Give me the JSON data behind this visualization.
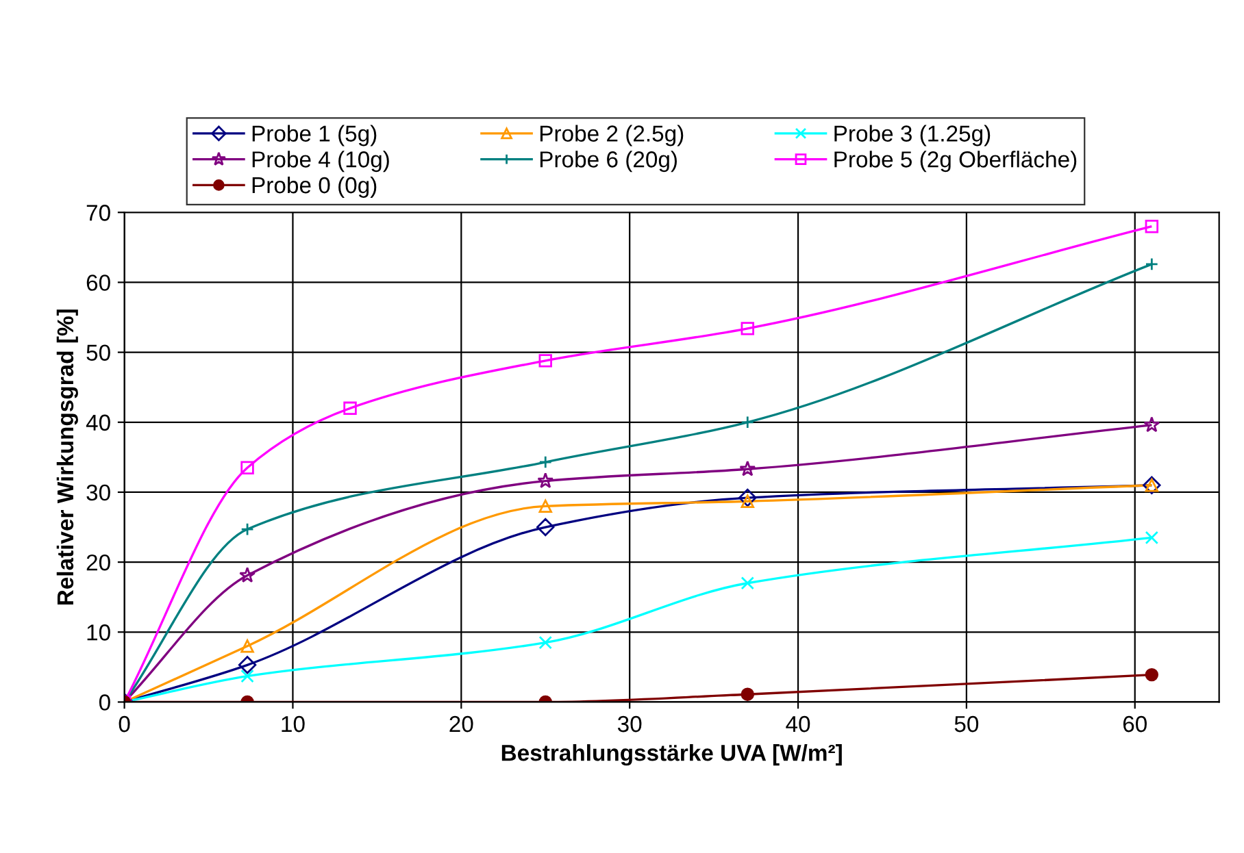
{
  "chart_data": {
    "type": "line",
    "xlabel": "Bestrahlungsstärke UVA [W/m²]",
    "ylabel": "Relativer Wirkungsgrad [%]",
    "xlim": [
      0,
      65
    ],
    "xticks": [
      0,
      10,
      20,
      30,
      40,
      50,
      60
    ],
    "ylim": [
      0,
      70
    ],
    "yticks": [
      0,
      10,
      20,
      30,
      40,
      50,
      60,
      70
    ],
    "grid": true,
    "legend": "top",
    "line_style": "solid",
    "series": [
      {
        "name": "Probe 1 (5g)",
        "color": "#000080",
        "marker": "diamond",
        "x": [
          0,
          7.3,
          25,
          37,
          61
        ],
        "values": [
          0,
          5.3,
          25,
          29.2,
          31
        ]
      },
      {
        "name": "Probe 2 (2.5g)",
        "color": "#ff9900",
        "marker": "triangle",
        "x": [
          0,
          7.3,
          25,
          37,
          61
        ],
        "values": [
          0,
          8,
          28,
          28.7,
          31
        ]
      },
      {
        "name": "Probe 3 (1.25g)",
        "color": "#00ffff",
        "marker": "cross",
        "x": [
          0,
          7.3,
          25,
          37,
          61
        ],
        "values": [
          0,
          3.7,
          8.5,
          17,
          23.5
        ]
      },
      {
        "name": "Probe 4 (10g)",
        "color": "#800080",
        "marker": "star",
        "x": [
          0,
          7.3,
          25,
          37,
          61
        ],
        "values": [
          0,
          18.1,
          31.6,
          33.3,
          39.6
        ]
      },
      {
        "name": "Probe 6 (20g)",
        "color": "#008080",
        "marker": "plus",
        "x": [
          0,
          7.3,
          25,
          37,
          61
        ],
        "values": [
          0,
          24.7,
          34.3,
          40,
          62.6
        ]
      },
      {
        "name": "Probe 5 (2g Oberfläche)",
        "color": "#ff00ff",
        "marker": "square",
        "x": [
          0,
          7.3,
          13.4,
          25,
          37,
          61
        ],
        "values": [
          0,
          33.5,
          42,
          48.8,
          53.4,
          68
        ]
      },
      {
        "name": "Probe 0 (0g)",
        "color": "#800000",
        "marker": "circle",
        "x": [
          0,
          7.3,
          25,
          37,
          61
        ],
        "values": [
          0,
          0,
          0,
          1.1,
          3.9
        ]
      }
    ]
  }
}
